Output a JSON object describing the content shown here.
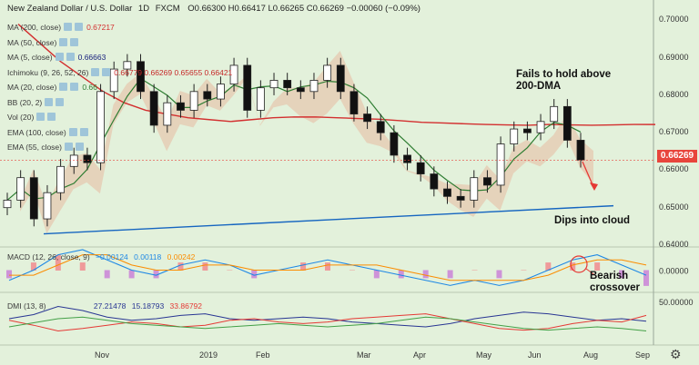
{
  "header": {
    "symbol": "New Zealand Dollar / U.S. Dollar",
    "interval": "1D",
    "source": "FXCM",
    "ohlc": "O0.66300 H0.66417 L0.66265 C0.66269 −0.00060 (−0.09%)"
  },
  "indicators": [
    {
      "label": "MA (200, close)",
      "value": "0.67217",
      "color": "#d32f2f"
    },
    {
      "label": "MA (50, close)",
      "value": "",
      "color": "#888888"
    },
    {
      "label": "MA (5, close)",
      "value": "0.66663",
      "color": "#1a237e"
    },
    {
      "label": "Ichimoku (9, 26, 52, 26)",
      "value": "0.66779   0.66269   0.65655   0.66421",
      "color": "#c62828"
    },
    {
      "label": "MA (20, close)",
      "value": "0.66",
      "color": "#2e7d32"
    },
    {
      "label": "BB (20, 2)",
      "value": "",
      "color": "#888888"
    },
    {
      "label": "Vol (20)",
      "value": "",
      "color": "#888888"
    },
    {
      "label": "EMA (100, close)",
      "value": "",
      "color": "#888888"
    },
    {
      "label": "EMA (55, close)",
      "value": "",
      "color": "#888888"
    }
  ],
  "annotations": {
    "fail_text": "Fails to hold above\n200-DMA",
    "dip_text": "Dips into cloud",
    "bearish_text": "Bearish\ncrossover"
  },
  "price_tag": "0.66269",
  "macd_legend": {
    "label": "MACD (12, 26, close, 9)",
    "v1": "−0.00124",
    "v2": "0.00118",
    "v3": "0.00242"
  },
  "dmi_legend": {
    "label": "DMI (13, 8)",
    "v1": "27.21478",
    "v2": "15.18793",
    "v3": "33.86792"
  },
  "colors": {
    "bg": "#e3f1db",
    "up": "#ffffff",
    "down": "#111111",
    "ma200": "#d32f2f",
    "ma20": "#2e7d32",
    "cloud": "#e8b9a0",
    "cloud_green": "#a5d6a7",
    "trendline": "#1565c0",
    "macd": "#1e88e5",
    "signal": "#fb8c00",
    "di_plus": "#283593",
    "di_minus": "#e53935",
    "adx": "#43a047"
  },
  "chart_data": [
    {
      "type": "candlestick",
      "title": "New Zealand Dollar / U.S. Dollar 1D FXCM",
      "ylim": [
        0.6395,
        0.7035
      ],
      "y_ticks": [
        0.64,
        0.65,
        0.66,
        0.67,
        0.68,
        0.69,
        0.7
      ],
      "x_ticks": [
        "Nov",
        "2019",
        "Feb",
        "Mar",
        "Apr",
        "May",
        "Jun",
        "Jul",
        "Aug",
        "Sep"
      ],
      "x": [
        "2018-10-01",
        "2018-10-08",
        "2018-10-15",
        "2018-10-22",
        "2018-10-29",
        "2018-11-05",
        "2018-11-12",
        "2018-11-19",
        "2018-11-26",
        "2018-12-03",
        "2018-12-10",
        "2018-12-17",
        "2018-12-24",
        "2018-12-31",
        "2019-01-07",
        "2019-01-14",
        "2019-01-21",
        "2019-01-28",
        "2019-02-04",
        "2019-02-11",
        "2019-02-18",
        "2019-02-25",
        "2019-03-04",
        "2019-03-11",
        "2019-03-18",
        "2019-03-25",
        "2019-04-01",
        "2019-04-08",
        "2019-04-15",
        "2019-04-22",
        "2019-04-29",
        "2019-05-06",
        "2019-05-13",
        "2019-05-20",
        "2019-05-27",
        "2019-06-03",
        "2019-06-10",
        "2019-06-17",
        "2019-06-24",
        "2019-07-01",
        "2019-07-08",
        "2019-07-15",
        "2019-07-22",
        "2019-07-26"
      ],
      "close": [
        0.652,
        0.658,
        0.647,
        0.654,
        0.661,
        0.664,
        0.662,
        0.681,
        0.687,
        0.689,
        0.681,
        0.672,
        0.678,
        0.676,
        0.681,
        0.679,
        0.683,
        0.688,
        0.676,
        0.682,
        0.684,
        0.682,
        0.681,
        0.684,
        0.688,
        0.681,
        0.675,
        0.673,
        0.67,
        0.664,
        0.662,
        0.659,
        0.655,
        0.653,
        0.652,
        0.658,
        0.656,
        0.667,
        0.671,
        0.67,
        0.673,
        0.677,
        0.668,
        0.6627
      ],
      "ma200": [
        0.699,
        0.694,
        0.689,
        0.685,
        0.681,
        0.678,
        0.676,
        0.675,
        0.674,
        0.6735,
        0.673,
        0.6735,
        0.674,
        0.6742,
        0.6742,
        0.674,
        0.6738,
        0.6736,
        0.6732,
        0.6728,
        0.6726,
        0.6724,
        0.6722,
        0.6721,
        0.672,
        0.6722,
        0.6721,
        0.672,
        0.6721,
        0.6722,
        0.6722
      ],
      "trendline": [
        [
          0,
          0.643
        ],
        [
          42,
          0.6505
        ]
      ],
      "series": [
        {
          "name": "MA (200, close)"
        },
        {
          "name": "MA (20, close)"
        }
      ]
    },
    {
      "type": "line",
      "title": "MACD (12, 26, close, 9)",
      "ylim": [
        -0.004,
        0.004
      ],
      "y_ticks": [
        0.0
      ],
      "series": [
        {
          "name": "MACD",
          "values": [
            -0.002,
            0.0,
            0.003,
            0.004,
            0.002,
            0.0,
            -0.001,
            0.001,
            0.002,
            0.001,
            -0.001,
            0.0,
            0.001,
            0.002,
            0.001,
            0.0,
            -0.001,
            -0.002,
            -0.003,
            -0.002,
            -0.003,
            -0.002,
            0.0,
            0.002,
            0.003,
            0.001,
            -0.001
          ]
        },
        {
          "name": "Signal",
          "values": [
            -0.001,
            -0.001,
            0.001,
            0.003,
            0.003,
            0.001,
            0.0,
            0.0,
            0.001,
            0.001,
            0.0,
            0.0,
            0.0,
            0.001,
            0.001,
            0.001,
            0.0,
            -0.001,
            -0.002,
            -0.002,
            -0.002,
            -0.002,
            -0.001,
            0.001,
            0.002,
            0.002,
            0.001
          ]
        }
      ]
    },
    {
      "type": "line",
      "title": "DMI (13, 8)",
      "ylim": [
        0,
        60
      ],
      "y_ticks": [
        50.0
      ],
      "series": [
        {
          "name": "+DI",
          "values": [
            30,
            35,
            45,
            40,
            32,
            28,
            30,
            34,
            36,
            30,
            28,
            30,
            32,
            30,
            26,
            24,
            22,
            20,
            24,
            30,
            34,
            38,
            36,
            32,
            28,
            30,
            27
          ]
        },
        {
          "name": "-DI",
          "values": [
            28,
            22,
            15,
            18,
            22,
            26,
            24,
            20,
            22,
            28,
            30,
            26,
            24,
            26,
            30,
            32,
            34,
            36,
            30,
            24,
            18,
            16,
            18,
            24,
            28,
            26,
            34
          ]
        },
        {
          "name": "ADX",
          "values": [
            20,
            25,
            30,
            32,
            28,
            24,
            22,
            20,
            18,
            20,
            22,
            24,
            22,
            20,
            22,
            24,
            28,
            32,
            30,
            26,
            22,
            18,
            16,
            18,
            20,
            18,
            15
          ]
        }
      ]
    }
  ]
}
